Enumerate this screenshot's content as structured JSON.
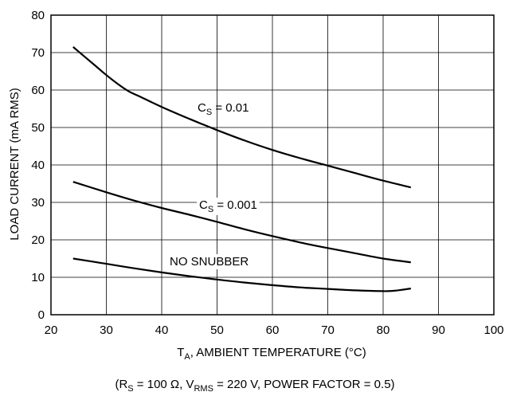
{
  "chart_data": {
    "type": "line",
    "xlabel": {
      "main": "T",
      "sub": "A",
      "rest": ", AMBIENT TEMPERATURE (°C)"
    },
    "ylabel": "LOAD CURRENT (mA RMS)",
    "footnote": {
      "open": "(R",
      "rs_sub": "S",
      "rs_val": " = 100 Ω, V",
      "vrms_sub": "RMS",
      "vrms_val": " = 220 V, POWER FACTOR = 0.5)"
    },
    "xlim": [
      20,
      100
    ],
    "ylim": [
      0,
      80
    ],
    "x_ticks": [
      20,
      30,
      40,
      50,
      60,
      70,
      80,
      90,
      100
    ],
    "y_ticks": [
      0,
      10,
      20,
      30,
      40,
      50,
      60,
      70,
      80
    ],
    "grid": true,
    "series": [
      {
        "name": {
          "main": "C",
          "sub": "S",
          "rest": " = 0.01"
        },
        "x": [
          24,
          26,
          28,
          30,
          32,
          34,
          36,
          40,
          45,
          50,
          55,
          60,
          65,
          70,
          75,
          80,
          85
        ],
        "y": [
          71.5,
          69,
          66.5,
          64,
          61.7,
          59.7,
          58.3,
          55.5,
          52.3,
          49.3,
          46.5,
          44,
          41.8,
          39.8,
          37.8,
          35.8,
          34
        ]
      },
      {
        "name": {
          "main": "C",
          "sub": "S",
          "rest": " = 0.001"
        },
        "x": [
          24,
          30,
          35,
          40,
          45,
          50,
          55,
          60,
          65,
          70,
          75,
          80,
          85
        ],
        "y": [
          35.5,
          32.7,
          30.5,
          28.5,
          26.7,
          24.8,
          22.8,
          21,
          19.3,
          17.8,
          16.4,
          15,
          14
        ]
      },
      {
        "name": "NO SNUBBER",
        "x": [
          24,
          30,
          35,
          40,
          45,
          50,
          55,
          60,
          65,
          70,
          75,
          80,
          82,
          85
        ],
        "y": [
          15,
          13.6,
          12.4,
          11.3,
          10.3,
          9.4,
          8.6,
          7.9,
          7.3,
          6.9,
          6.5,
          6.3,
          6.4,
          7
        ]
      }
    ]
  }
}
